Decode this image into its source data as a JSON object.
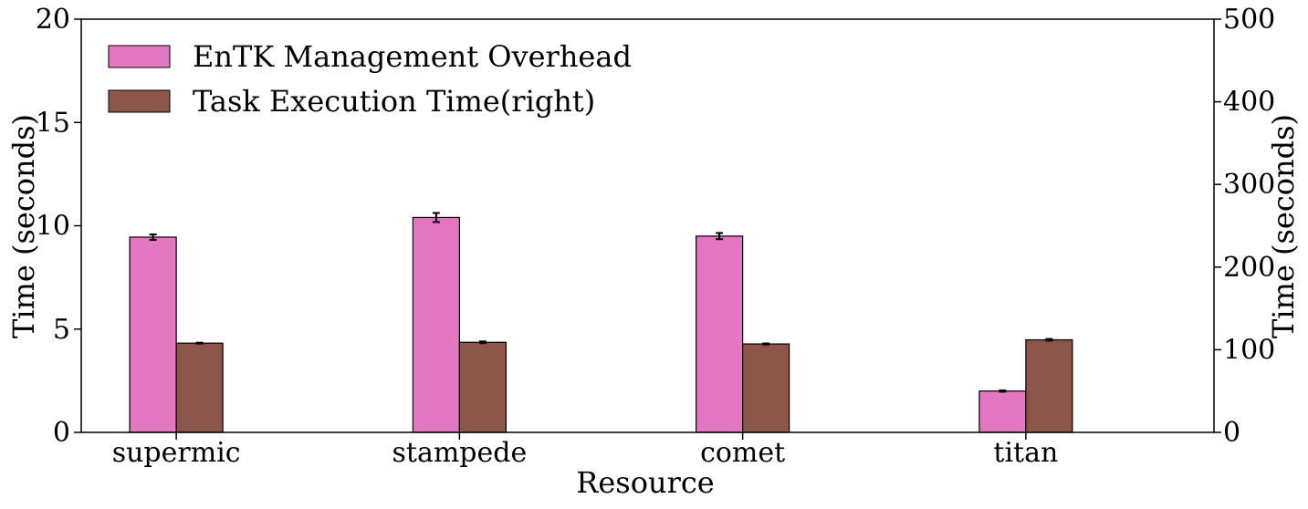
{
  "chart_data": {
    "type": "bar",
    "categories": [
      "supermic",
      "stampede",
      "comet",
      "titan"
    ],
    "xlabel": "Resource",
    "ylabel_left": "Time (seconds)",
    "ylabel_right": "Time (seconds)",
    "ylim_left": [
      0,
      20
    ],
    "ylim_right": [
      0,
      500
    ],
    "yticks_left": [
      0,
      5,
      10,
      15,
      20
    ],
    "yticks_right": [
      0,
      100,
      200,
      300,
      400,
      500
    ],
    "grid": false,
    "legend_position": "top-left",
    "series": [
      {
        "name": "EnTK Management Overhead",
        "axis": "left",
        "color": "#e377c2",
        "values": [
          9.45,
          10.4,
          9.5,
          2.0
        ],
        "errors": [
          0.13,
          0.22,
          0.15,
          0.03
        ]
      },
      {
        "name": "Task Execution Time(right)",
        "axis": "right",
        "color": "#8c564b",
        "values": [
          108,
          109,
          107,
          112
        ],
        "errors": [
          0.5,
          1.0,
          0.6,
          1.0
        ]
      }
    ]
  }
}
